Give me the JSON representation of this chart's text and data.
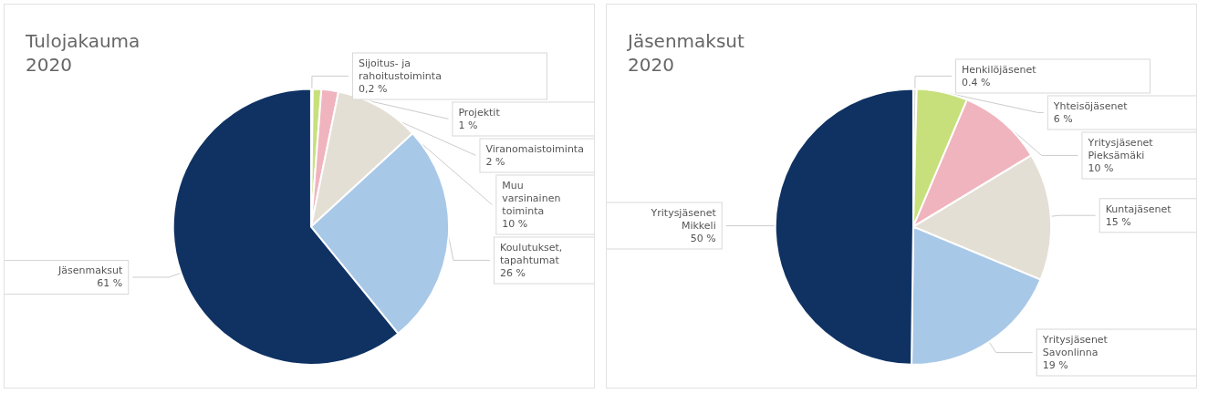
{
  "chart_data": [
    {
      "type": "pie",
      "title": "Tulojakauma\n2020",
      "categories": [
        "Sijoitus- ja\nrahoitustoiminta",
        "Projektit",
        "Viranomaistoiminta",
        "Muu\nvarsinainen\ntoiminta",
        "Koulutukset,\ntapahtumat",
        "Jäsenmaksut"
      ],
      "values": [
        0.2,
        1,
        2,
        10,
        26,
        61
      ],
      "value_labels": [
        "0,2 %",
        "1 %",
        "2 %",
        "10 %",
        "26 %",
        "61 %"
      ],
      "colors": [
        "#d9d9d9",
        "#c8e07c",
        "#f0b4be",
        "#e4dfd4",
        "#a8c8e8",
        "#0f3263"
      ]
    },
    {
      "type": "pie",
      "title": "Jäsenmaksut\n2020",
      "categories": [
        "Henkilöjäsenet",
        "Yhteisöjäsenet",
        "Yritysjäsenet\nPieksämäki",
        "Kuntajäsenet",
        "Yritysjäsenet\nSavonlinna",
        "Yritysjäsenet\nMikkeli"
      ],
      "values": [
        0.4,
        6,
        10,
        15,
        19,
        50
      ],
      "value_labels": [
        "0.4 %",
        "6 %",
        "10 %",
        "15 %",
        "19 %",
        "50 %"
      ],
      "colors": [
        "#d9d9d9",
        "#c8e07c",
        "#f0b4be",
        "#e4dfd4",
        "#a8c8e8",
        "#0f3263"
      ]
    }
  ]
}
